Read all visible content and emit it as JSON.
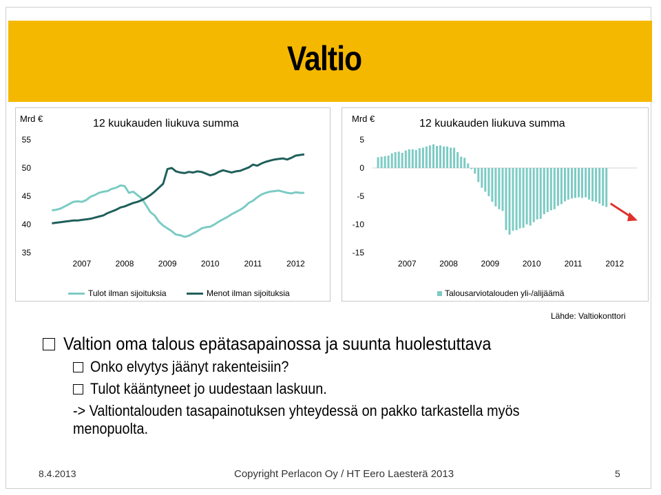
{
  "slide": {
    "title": "Valtio",
    "source": "Lähde: Valtiokonttori",
    "bullets": {
      "main": "Valtion oma talous epätasapainossa ja suunta huolestuttava",
      "sub1": "Onko elvytys jäänyt rakenteisiin?",
      "sub2": "Tulot kääntyneet jo uudestaan laskuun.",
      "note": "-> Valtiontalouden tasapainotuksen yhteydessä on pakko tarkastella myös menopuolta."
    },
    "footer": {
      "date": "8.4.2013",
      "copyright": "Copyright Perlacon Oy / HT Eero Laesterä 2013",
      "page": "5"
    }
  },
  "chart_data": [
    {
      "type": "line",
      "title": "12 kuukauden liukuva summa",
      "unit_label": "Mrd €",
      "ylim": [
        35,
        55
      ],
      "yticks": [
        "55",
        "50",
        "45",
        "40",
        "35"
      ],
      "xticks": [
        "2007",
        "2008",
        "2009",
        "2010",
        "2011",
        "2012"
      ],
      "x_start": 2006.6,
      "x_end": 2013.2,
      "series": [
        {
          "name": "Tulot ilman sijoituksia",
          "color": "#7ccbc4",
          "points": [
            [
              2006.8,
              42.5
            ],
            [
              2006.9,
              42.6
            ],
            [
              2007.0,
              42.8
            ],
            [
              2007.1,
              43.2
            ],
            [
              2007.2,
              43.6
            ],
            [
              2007.3,
              44.0
            ],
            [
              2007.4,
              44.1
            ],
            [
              2007.5,
              44.0
            ],
            [
              2007.6,
              44.3
            ],
            [
              2007.7,
              44.9
            ],
            [
              2007.8,
              45.2
            ],
            [
              2007.9,
              45.6
            ],
            [
              2008.0,
              45.8
            ],
            [
              2008.1,
              45.9
            ],
            [
              2008.2,
              46.3
            ],
            [
              2008.3,
              46.5
            ],
            [
              2008.4,
              46.9
            ],
            [
              2008.5,
              46.8
            ],
            [
              2008.6,
              45.6
            ],
            [
              2008.7,
              45.8
            ],
            [
              2008.8,
              45.2
            ],
            [
              2008.9,
              44.6
            ],
            [
              2009.0,
              43.4
            ],
            [
              2009.1,
              42.2
            ],
            [
              2009.2,
              41.6
            ],
            [
              2009.3,
              40.5
            ],
            [
              2009.4,
              39.8
            ],
            [
              2009.5,
              39.3
            ],
            [
              2009.6,
              38.8
            ],
            [
              2009.7,
              38.2
            ],
            [
              2009.8,
              38.1
            ],
            [
              2009.9,
              37.8
            ],
            [
              2010.0,
              38.0
            ],
            [
              2010.1,
              38.4
            ],
            [
              2010.2,
              38.8
            ],
            [
              2010.3,
              39.3
            ],
            [
              2010.4,
              39.5
            ],
            [
              2010.5,
              39.6
            ],
            [
              2010.6,
              40.0
            ],
            [
              2010.7,
              40.5
            ],
            [
              2010.8,
              40.9
            ],
            [
              2010.9,
              41.3
            ],
            [
              2011.0,
              41.8
            ],
            [
              2011.1,
              42.2
            ],
            [
              2011.2,
              42.6
            ],
            [
              2011.3,
              43.1
            ],
            [
              2011.4,
              43.8
            ],
            [
              2011.5,
              44.2
            ],
            [
              2011.6,
              44.8
            ],
            [
              2011.7,
              45.3
            ],
            [
              2011.8,
              45.6
            ],
            [
              2011.9,
              45.8
            ],
            [
              2012.0,
              45.9
            ],
            [
              2012.1,
              46.0
            ],
            [
              2012.2,
              45.8
            ],
            [
              2012.3,
              45.6
            ],
            [
              2012.4,
              45.5
            ],
            [
              2012.5,
              45.7
            ],
            [
              2012.6,
              45.6
            ],
            [
              2012.7,
              45.6
            ]
          ]
        },
        {
          "name": "Menot ilman sijoituksia",
          "color": "#1f5f5b",
          "points": [
            [
              2006.8,
              40.2
            ],
            [
              2006.9,
              40.3
            ],
            [
              2007.0,
              40.4
            ],
            [
              2007.1,
              40.5
            ],
            [
              2007.2,
              40.6
            ],
            [
              2007.3,
              40.7
            ],
            [
              2007.4,
              40.7
            ],
            [
              2007.5,
              40.8
            ],
            [
              2007.6,
              40.9
            ],
            [
              2007.7,
              41.0
            ],
            [
              2007.8,
              41.2
            ],
            [
              2007.9,
              41.4
            ],
            [
              2008.0,
              41.6
            ],
            [
              2008.1,
              42.0
            ],
            [
              2008.2,
              42.3
            ],
            [
              2008.3,
              42.6
            ],
            [
              2008.4,
              43.0
            ],
            [
              2008.5,
              43.2
            ],
            [
              2008.6,
              43.5
            ],
            [
              2008.7,
              43.8
            ],
            [
              2008.8,
              44.0
            ],
            [
              2008.9,
              44.3
            ],
            [
              2009.0,
              44.7
            ],
            [
              2009.1,
              45.2
            ],
            [
              2009.2,
              45.8
            ],
            [
              2009.3,
              46.5
            ],
            [
              2009.4,
              47.2
            ],
            [
              2009.5,
              49.8
            ],
            [
              2009.6,
              50.0
            ],
            [
              2009.7,
              49.4
            ],
            [
              2009.8,
              49.2
            ],
            [
              2009.9,
              49.1
            ],
            [
              2010.0,
              49.3
            ],
            [
              2010.1,
              49.2
            ],
            [
              2010.2,
              49.4
            ],
            [
              2010.3,
              49.3
            ],
            [
              2010.4,
              49.0
            ],
            [
              2010.5,
              48.7
            ],
            [
              2010.6,
              48.9
            ],
            [
              2010.7,
              49.3
            ],
            [
              2010.8,
              49.6
            ],
            [
              2010.9,
              49.4
            ],
            [
              2011.0,
              49.2
            ],
            [
              2011.1,
              49.4
            ],
            [
              2011.2,
              49.5
            ],
            [
              2011.3,
              49.8
            ],
            [
              2011.4,
              50.1
            ],
            [
              2011.5,
              50.6
            ],
            [
              2011.6,
              50.4
            ],
            [
              2011.7,
              50.8
            ],
            [
              2011.8,
              51.1
            ],
            [
              2011.9,
              51.3
            ],
            [
              2012.0,
              51.5
            ],
            [
              2012.1,
              51.6
            ],
            [
              2012.2,
              51.7
            ],
            [
              2012.3,
              51.5
            ],
            [
              2012.4,
              51.8
            ],
            [
              2012.5,
              52.2
            ],
            [
              2012.6,
              52.3
            ],
            [
              2012.7,
              52.4
            ]
          ]
        }
      ]
    },
    {
      "type": "bar",
      "title": "12 kuukauden liukuva summa",
      "unit_label": "Mrd €",
      "ylim": [
        -15,
        5
      ],
      "yticks": [
        "5",
        "0",
        "-5",
        "-10",
        "-15"
      ],
      "xticks": [
        "2007",
        "2008",
        "2009",
        "2010",
        "2011",
        "2012"
      ],
      "x_start": 2006.6,
      "x_end": 2013.2,
      "x_first": 2006.8,
      "x_step": 0.08333,
      "series": [
        {
          "name": "Talousarviotalouden yli-/alijäämä",
          "color": "#7ccbc4",
          "values": [
            1.9,
            2.0,
            2.1,
            2.2,
            2.6,
            2.8,
            2.9,
            2.7,
            3.1,
            3.3,
            3.3,
            3.2,
            3.5,
            3.6,
            3.8,
            4.0,
            4.2,
            3.9,
            4.0,
            3.8,
            3.8,
            3.6,
            3.6,
            2.8,
            2.0,
            1.8,
            0.8,
            -0.2,
            -1.0,
            -2.5,
            -3.5,
            -4.2,
            -5.0,
            -6.0,
            -6.8,
            -7.3,
            -7.6,
            -11.0,
            -11.8,
            -11.1,
            -11.0,
            -10.7,
            -10.6,
            -10.0,
            -10.2,
            -9.6,
            -9.1,
            -9.0,
            -8.2,
            -7.8,
            -7.5,
            -7.3,
            -6.7,
            -6.4,
            -5.9,
            -5.6,
            -5.4,
            -5.3,
            -5.2,
            -5.3,
            -5.2,
            -5.6,
            -5.9,
            -6.0,
            -6.3,
            -6.7,
            -6.9
          ]
        }
      ]
    }
  ]
}
